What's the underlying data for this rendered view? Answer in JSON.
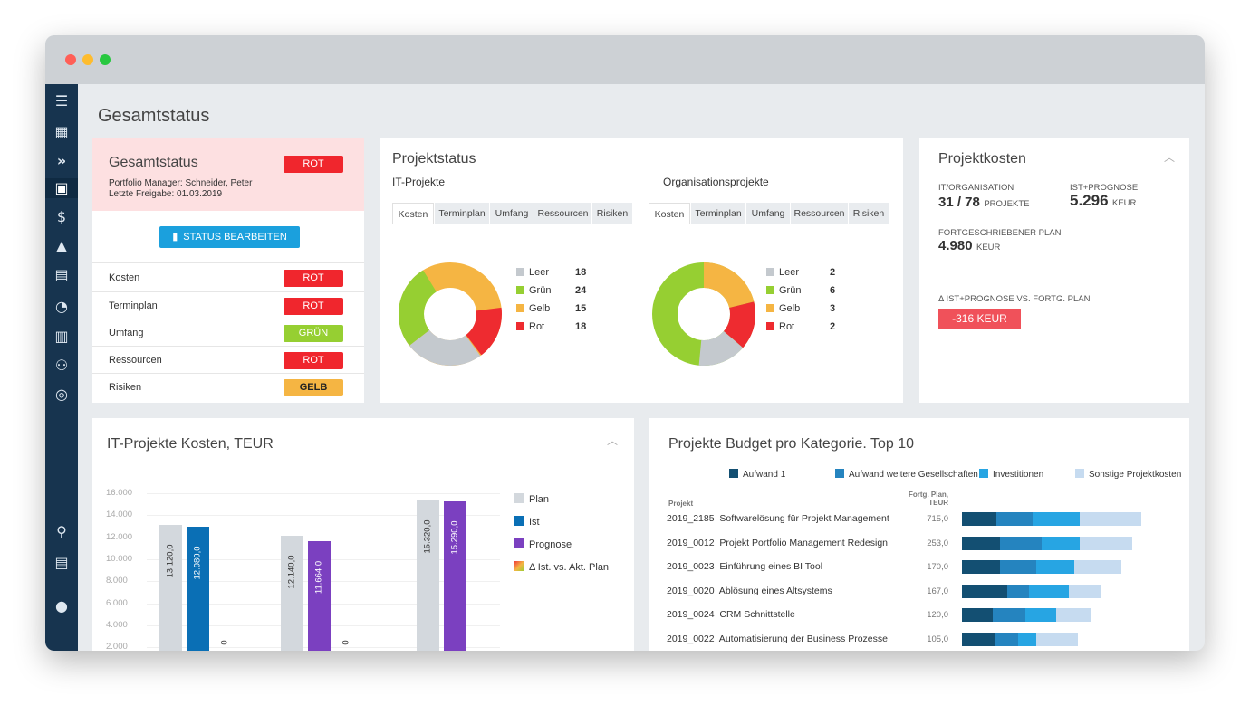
{
  "page_title": "Gesamtstatus",
  "sidebar": {
    "icons": [
      "menu-icon",
      "dashboard-icon",
      "chevrons-icon",
      "briefcase-icon",
      "budget-icon",
      "triangle-icon",
      "clipboard-icon",
      "timer-icon",
      "report-icon",
      "users-icon",
      "radar-icon",
      "search-icon",
      "document-icon",
      "user-icon"
    ]
  },
  "status_card": {
    "title": "Gesamtstatus",
    "overall": "ROT",
    "manager": "Portfolio Manager: Schneider, Peter",
    "release": "Letzte Freigabe: 01.03.2019",
    "edit_button": "STATUS BEARBEITEN",
    "rows": [
      {
        "label": "Kosten",
        "status": "ROT",
        "color": "#f0262d"
      },
      {
        "label": "Terminplan",
        "status": "ROT",
        "color": "#f0262d"
      },
      {
        "label": "Umfang",
        "status": "GRÜN",
        "color": "#96cf32"
      },
      {
        "label": "Ressourcen",
        "status": "ROT",
        "color": "#f0262d"
      },
      {
        "label": "Risiken",
        "status": "GELB",
        "color": "#f5b543"
      }
    ]
  },
  "project_status": {
    "title": "Projektstatus",
    "tabs": [
      "Kosten",
      "Terminplan",
      "Umfang",
      "Ressourcen",
      "Risiken"
    ],
    "groups": [
      {
        "title": "IT-Projekte",
        "legend": [
          {
            "label": "Leer",
            "value": "18",
            "color": "#c4c9ce"
          },
          {
            "label": "Grün",
            "value": "24",
            "color": "#96cf32"
          },
          {
            "label": "Gelb",
            "value": "15",
            "color": "#f5b543"
          },
          {
            "label": "Rot",
            "value": "18",
            "color": "#ee2b30"
          }
        ]
      },
      {
        "title": "Organisationsprojekte",
        "legend": [
          {
            "label": "Leer",
            "value": "2",
            "color": "#c4c9ce"
          },
          {
            "label": "Grün",
            "value": "6",
            "color": "#96cf32"
          },
          {
            "label": "Gelb",
            "value": "3",
            "color": "#f5b543"
          },
          {
            "label": "Rot",
            "value": "2",
            "color": "#ee2b30"
          }
        ]
      }
    ]
  },
  "costs": {
    "title": "Projektkosten",
    "it_org_label": "IT/ORGANISATION",
    "it_org_value": "31 / 78",
    "it_org_unit": "PROJEKTE",
    "forecast_label": "IST+PROGNOSE",
    "forecast_value": "5.296",
    "forecast_unit": "KEUR",
    "plan_label": "FORTGESCHRIEBENER PLAN",
    "plan_value": "4.980",
    "plan_unit": "KEUR",
    "delta_label": "Δ IST+PROGNOSE VS. FORTG. PLAN",
    "delta_value": "-316 KEUR"
  },
  "it_costs": {
    "title": "IT-Projekte Kosten, TEUR",
    "legend": [
      {
        "label": "Plan",
        "color": "#d3d8dd"
      },
      {
        "label": "Ist",
        "color": "#0a6fb5"
      },
      {
        "label": "Prognose",
        "color": "#7b40c0"
      },
      {
        "label": "Δ Ist. vs. Akt. Plan",
        "color": "#e44"
      }
    ]
  },
  "chart_data": [
    {
      "type": "bar",
      "title": "IT-Projekte Kosten, TEUR",
      "yticks": [
        "16.000",
        "14.000",
        "12.000",
        "10.000",
        "8.000",
        "6.000",
        "4.000",
        "2.000"
      ],
      "ylim": [
        0,
        16000
      ],
      "groups": [
        {
          "bars": [
            {
              "series": "Plan",
              "value": 13120,
              "label": "13.120,0",
              "color": "#d3d8dd"
            },
            {
              "series": "Ist",
              "value": 12980,
              "label": "12.980,0",
              "color": "#0a6fb5"
            },
            {
              "series": "Δ",
              "value": 0,
              "label": "0",
              "color": "#e44"
            }
          ]
        },
        {
          "bars": [
            {
              "series": "Plan",
              "value": 12140,
              "label": "12.140,0",
              "color": "#d3d8dd"
            },
            {
              "series": "Prognose",
              "value": 11664,
              "label": "11.664,0",
              "color": "#7b40c0"
            },
            {
              "series": "Δ",
              "value": 0,
              "label": "0",
              "color": "#e44"
            }
          ]
        },
        {
          "bars": [
            {
              "series": "Plan",
              "value": 15320,
              "label": "15.320,0",
              "color": "#d3d8dd"
            },
            {
              "series": "Prognose",
              "value": 15290,
              "label": "15.290,0",
              "color": "#7b40c0"
            }
          ]
        }
      ]
    },
    {
      "type": "bar",
      "title": "Projekte Budget pro Kategorie. Top 10",
      "series": [
        {
          "name": "Aufwand 1",
          "color": "#134f72"
        },
        {
          "name": "Aufwand  weitere Gesellschaften",
          "color": "#2584bf"
        },
        {
          "name": "Investitionen",
          "color": "#27a5e3"
        },
        {
          "name": "Sonstige Projektkosten",
          "color": "#c6dbf0"
        }
      ],
      "col_project": "Projekt",
      "col_plan": "Fortg. Plan,",
      "col_plan_unit": "TEUR",
      "rows": [
        {
          "project": "2019_2185  Softwarelösung für Projekt Management",
          "plan": "715,0",
          "segs": [
            38,
            40,
            52,
            68
          ]
        },
        {
          "project": "2019_0012  Projekt Portfolio Management Redesign",
          "plan": "253,0",
          "segs": [
            42,
            46,
            42,
            58
          ]
        },
        {
          "project": "2019_0023  Einführung eines BI Tool",
          "plan": "170,0",
          "segs": [
            42,
            40,
            42,
            52
          ]
        },
        {
          "project": "2019_0020  Ablösung eines Altsystems",
          "plan": "167,0",
          "segs": [
            50,
            24,
            44,
            36
          ]
        },
        {
          "project": "2019_0024  CRM Schnittstelle",
          "plan": "120,0",
          "segs": [
            34,
            36,
            34,
            38
          ]
        },
        {
          "project": "2019_0022  Automatisierung der Business Prozesse",
          "plan": "105,0",
          "segs": [
            36,
            26,
            20,
            46
          ]
        }
      ]
    }
  ]
}
